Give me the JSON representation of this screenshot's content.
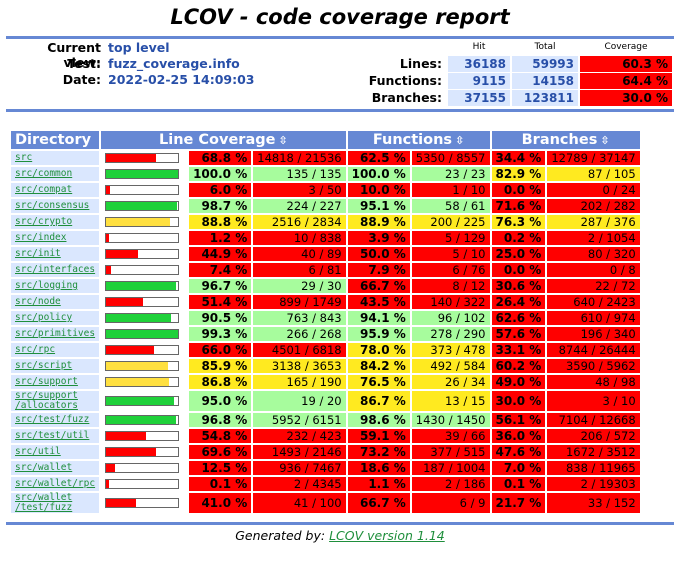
{
  "title": "LCOV - code coverage report",
  "info": {
    "current_view_label": "Current view:",
    "current_view": "top level",
    "test_label": "Test:",
    "test": "fuzz_coverage.info",
    "date_label": "Date:",
    "date": "2022-02-25 14:09:03"
  },
  "summary": {
    "col_hit": "Hit",
    "col_total": "Total",
    "col_coverage": "Coverage",
    "rows": [
      {
        "label": "Lines:",
        "hit": "36188",
        "total": "59993",
        "coverage": "60.3 %"
      },
      {
        "label": "Functions:",
        "hit": "9115",
        "total": "14158",
        "coverage": "64.4 %"
      },
      {
        "label": "Branches:",
        "hit": "37155",
        "total": "123811",
        "coverage": "30.0 %"
      }
    ]
  },
  "table": {
    "col_directory": "Directory",
    "col_line": "Line Coverage",
    "col_functions": "Functions",
    "col_branches": "Branches",
    "sort_icon": "sort-icon",
    "rows": [
      {
        "dir": "src",
        "bar": 0.688,
        "lp": "68.8 %",
        "lc": "14818 / 21536",
        "fp": "62.5 %",
        "fc": "5350 / 8557",
        "bp": "34.4 %",
        "bc": "12789 / 37147",
        "lcol": "red",
        "fcol": "red",
        "bcol": "red"
      },
      {
        "dir": "src/common",
        "bar": 1.0,
        "lp": "100.0 %",
        "lc": "135 / 135",
        "fp": "100.0 %",
        "fc": "23 / 23",
        "bp": "82.9 %",
        "bc": "87 / 105",
        "lcol": "grn",
        "fcol": "grn",
        "bcol": "yel"
      },
      {
        "dir": "src/compat",
        "bar": 0.06,
        "lp": "6.0 %",
        "lc": "3 / 50",
        "fp": "10.0 %",
        "fc": "1 / 10",
        "bp": "0.0 %",
        "bc": "0 / 24",
        "lcol": "red",
        "fcol": "red",
        "bcol": "red"
      },
      {
        "dir": "src/consensus",
        "bar": 0.987,
        "lp": "98.7 %",
        "lc": "224 / 227",
        "fp": "95.1 %",
        "fc": "58 / 61",
        "bp": "71.6 %",
        "bc": "202 / 282",
        "lcol": "grn",
        "fcol": "grn",
        "bcol": "red"
      },
      {
        "dir": "src/crypto",
        "bar": 0.888,
        "lp": "88.8 %",
        "lc": "2516 / 2834",
        "fp": "88.9 %",
        "fc": "200 / 225",
        "bp": "76.3 %",
        "bc": "287 / 376",
        "lcol": "yel",
        "fcol": "yel",
        "bcol": "yel"
      },
      {
        "dir": "src/index",
        "bar": 0.012,
        "lp": "1.2 %",
        "lc": "10 / 838",
        "fp": "3.9 %",
        "fc": "5 / 129",
        "bp": "0.2 %",
        "bc": "2 / 1054",
        "lcol": "red",
        "fcol": "red",
        "bcol": "red"
      },
      {
        "dir": "src/init",
        "bar": 0.449,
        "lp": "44.9 %",
        "lc": "40 / 89",
        "fp": "50.0 %",
        "fc": "5 / 10",
        "bp": "25.0 %",
        "bc": "80 / 320",
        "lcol": "red",
        "fcol": "red",
        "bcol": "red"
      },
      {
        "dir": "src/interfaces",
        "bar": 0.074,
        "lp": "7.4 %",
        "lc": "6 / 81",
        "fp": "7.9 %",
        "fc": "6 / 76",
        "bp": "0.0 %",
        "bc": "0 / 8",
        "lcol": "red",
        "fcol": "red",
        "bcol": "red"
      },
      {
        "dir": "src/logging",
        "bar": 0.967,
        "lp": "96.7 %",
        "lc": "29 / 30",
        "fp": "66.7 %",
        "fc": "8 / 12",
        "bp": "30.6 %",
        "bc": "22 / 72",
        "lcol": "grn",
        "fcol": "red",
        "bcol": "red"
      },
      {
        "dir": "src/node",
        "bar": 0.514,
        "lp": "51.4 %",
        "lc": "899 / 1749",
        "fp": "43.5 %",
        "fc": "140 / 322",
        "bp": "26.4 %",
        "bc": "640 / 2423",
        "lcol": "red",
        "fcol": "red",
        "bcol": "red"
      },
      {
        "dir": "src/policy",
        "bar": 0.905,
        "lp": "90.5 %",
        "lc": "763 / 843",
        "fp": "94.1 %",
        "fc": "96 / 102",
        "bp": "62.6 %",
        "bc": "610 / 974",
        "lcol": "grn",
        "fcol": "grn",
        "bcol": "red"
      },
      {
        "dir": "src/primitives",
        "bar": 0.993,
        "lp": "99.3 %",
        "lc": "266 / 268",
        "fp": "95.9 %",
        "fc": "278 / 290",
        "bp": "57.6 %",
        "bc": "196 / 340",
        "lcol": "grn",
        "fcol": "grn",
        "bcol": "red"
      },
      {
        "dir": "src/rpc",
        "bar": 0.66,
        "lp": "66.0 %",
        "lc": "4501 / 6818",
        "fp": "78.0 %",
        "fc": "373 / 478",
        "bp": "33.1 %",
        "bc": "8744 / 26444",
        "lcol": "red",
        "fcol": "yel",
        "bcol": "red"
      },
      {
        "dir": "src/script",
        "bar": 0.859,
        "lp": "85.9 %",
        "lc": "3138 / 3653",
        "fp": "84.2 %",
        "fc": "492 / 584",
        "bp": "60.2 %",
        "bc": "3590 / 5962",
        "lcol": "yel",
        "fcol": "yel",
        "bcol": "red"
      },
      {
        "dir": "src/support",
        "bar": 0.868,
        "lp": "86.8 %",
        "lc": "165 / 190",
        "fp": "76.5 %",
        "fc": "26 / 34",
        "bp": "49.0 %",
        "bc": "48 / 98",
        "lcol": "yel",
        "fcol": "yel",
        "bcol": "red"
      },
      {
        "dir": "src/support\n/allocators",
        "bar": 0.95,
        "lp": "95.0 %",
        "lc": "19 / 20",
        "fp": "86.7 %",
        "fc": "13 / 15",
        "bp": "30.0 %",
        "bc": "3 / 10",
        "lcol": "grn",
        "fcol": "yel",
        "bcol": "red"
      },
      {
        "dir": "src/test/fuzz",
        "bar": 0.968,
        "lp": "96.8 %",
        "lc": "5952 / 6151",
        "fp": "98.6 %",
        "fc": "1430 / 1450",
        "bp": "56.1 %",
        "bc": "7104 / 12668",
        "lcol": "grn",
        "fcol": "grn",
        "bcol": "red"
      },
      {
        "dir": "src/test/util",
        "bar": 0.548,
        "lp": "54.8 %",
        "lc": "232 / 423",
        "fp": "59.1 %",
        "fc": "39 / 66",
        "bp": "36.0 %",
        "bc": "206 / 572",
        "lcol": "red",
        "fcol": "red",
        "bcol": "red"
      },
      {
        "dir": "src/util",
        "bar": 0.696,
        "lp": "69.6 %",
        "lc": "1493 / 2146",
        "fp": "73.2 %",
        "fc": "377 / 515",
        "bp": "47.6 %",
        "bc": "1672 / 3512",
        "lcol": "red",
        "fcol": "red",
        "bcol": "red"
      },
      {
        "dir": "src/wallet",
        "bar": 0.125,
        "lp": "12.5 %",
        "lc": "936 / 7467",
        "fp": "18.6 %",
        "fc": "187 / 1004",
        "bp": "7.0 %",
        "bc": "838 / 11965",
        "lcol": "red",
        "fcol": "red",
        "bcol": "red"
      },
      {
        "dir": "src/wallet/rpc",
        "bar": 0.001,
        "lp": "0.1 %",
        "lc": "2 / 4345",
        "fp": "1.1 %",
        "fc": "2 / 186",
        "bp": "0.1 %",
        "bc": "2 / 19303",
        "lcol": "red",
        "fcol": "red",
        "bcol": "red"
      },
      {
        "dir": "src/wallet\n/test/fuzz",
        "bar": 0.41,
        "lp": "41.0 %",
        "lc": "41 / 100",
        "fp": "66.7 %",
        "fc": "6 / 9",
        "bp": "21.7 %",
        "bc": "33 / 152",
        "lcol": "red",
        "fcol": "red",
        "bcol": "red"
      }
    ]
  },
  "footer": {
    "prefix": "Generated by:",
    "link": "LCOV version 1.14"
  },
  "colors": {
    "header": "#6688d4",
    "red": "#ff0000",
    "yellow": "#ffea20",
    "green": "#a7fc9d",
    "bar_red": "#ff0000",
    "bar_yellow": "#ffe040",
    "bar_green": "#1fd13a"
  }
}
